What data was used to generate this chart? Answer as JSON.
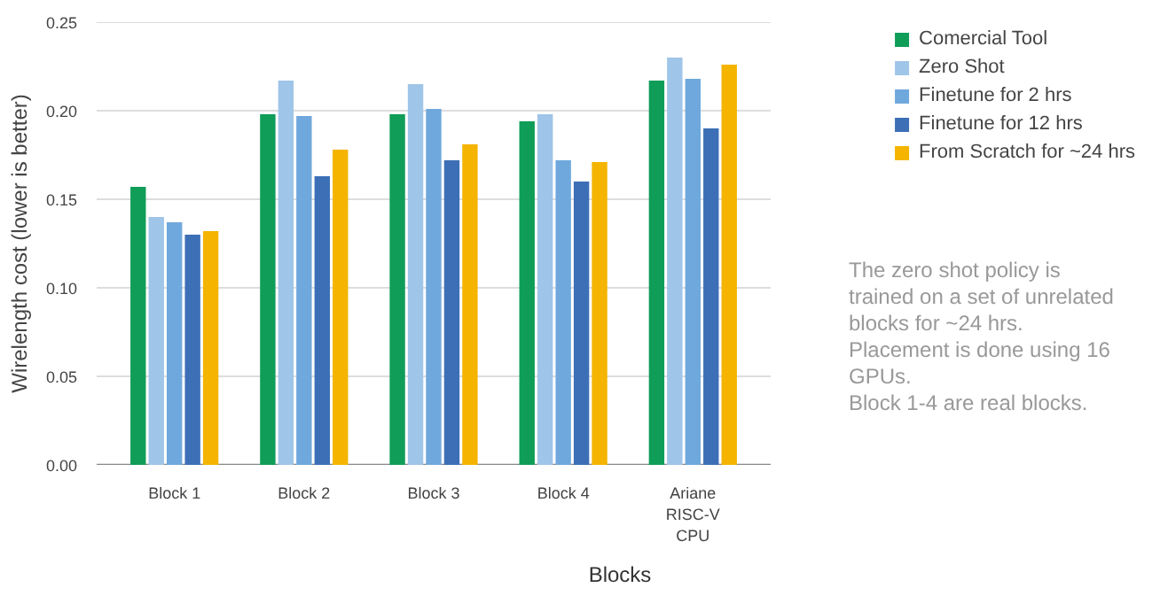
{
  "chart_data": {
    "type": "bar",
    "xlabel": "Blocks",
    "ylabel": "Wirelength cost (lower is better)",
    "categories": [
      "Block 1",
      "Block 2",
      "Block 3",
      "Block 4",
      "Ariane RISC-V CPU"
    ],
    "series": [
      {
        "name": "Comercial Tool",
        "color": "#0f9d58",
        "values": [
          0.157,
          0.198,
          0.198,
          0.194,
          0.217
        ]
      },
      {
        "name": "Zero Shot",
        "color": "#9fc5e8",
        "values": [
          0.14,
          0.217,
          0.215,
          0.198,
          0.23
        ]
      },
      {
        "name": "Finetune for 2 hrs",
        "color": "#6fa8dc",
        "values": [
          0.137,
          0.197,
          0.201,
          0.172,
          0.218
        ]
      },
      {
        "name": "Finetune for 12 hrs",
        "color": "#3d6fb6",
        "values": [
          0.13,
          0.163,
          0.172,
          0.16,
          0.19
        ]
      },
      {
        "name": "From Scratch for ~24 hrs",
        "color": "#f4b400",
        "values": [
          0.132,
          0.178,
          0.181,
          0.171,
          0.226
        ]
      }
    ],
    "ylim": [
      0,
      0.25
    ],
    "yticks": [
      {
        "value": 0,
        "label": "0.00"
      },
      {
        "value": 0.05,
        "label": "0.05"
      },
      {
        "value": 0.1,
        "label": "0.10"
      },
      {
        "value": 0.15,
        "label": "0.15"
      },
      {
        "value": 0.2,
        "label": "0.20"
      },
      {
        "value": 0.25,
        "label": "0.25"
      }
    ],
    "grid": "y",
    "legend": "top right",
    "annotations": [
      "The zero shot policy is trained on a set of unrelated blocks for ~24 hrs.",
      "Placement is done using 16 GPUs.",
      "Block 1-4 are real blocks."
    ]
  }
}
